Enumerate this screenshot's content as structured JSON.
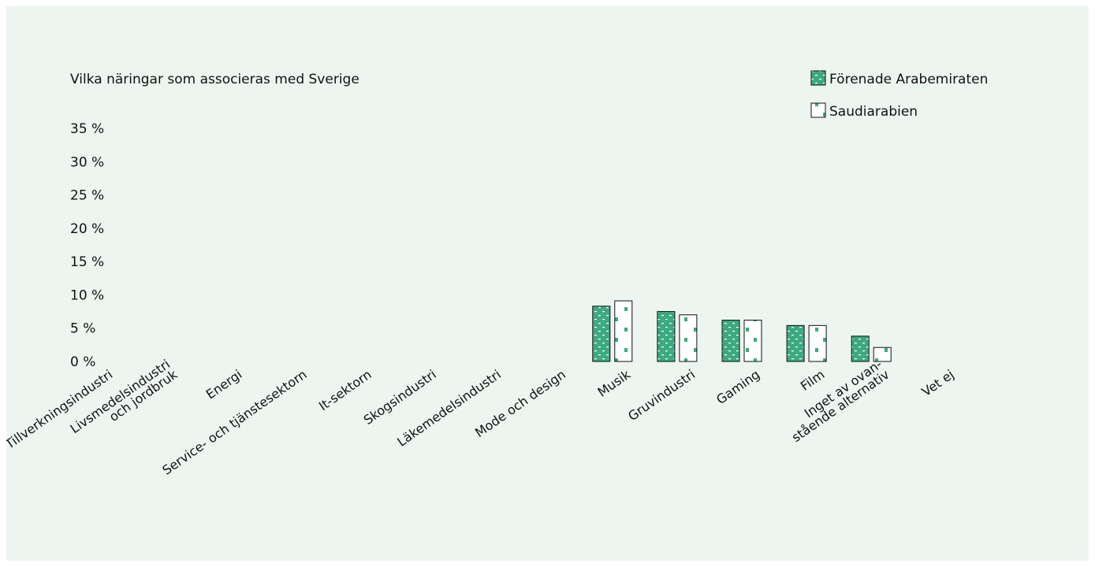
{
  "chart_data": {
    "type": "bar",
    "title": "Vilka näringar som associeras med Sverige",
    "categories": [
      "Tillverkningsindustri",
      "Livsmedelsindustri och jordbruk",
      "Energi",
      "Service- och tjänstesektorn",
      "It-sektorn",
      "Skogsindustri",
      "Läkemedelsindustri",
      "Mode och design",
      "Musik",
      "Gruvindustri",
      "Gaming",
      "Film",
      "Inget av ovan-stående alternativ",
      "Vet ej"
    ],
    "category_lines": [
      [
        "Tillverkningsindustri"
      ],
      [
        "Livsmedelsindustri",
        "och jordbruk"
      ],
      [
        "Energi"
      ],
      [
        "Service- och tjänstesektorn"
      ],
      [
        "It-sektorn"
      ],
      [
        "Skogsindustri"
      ],
      [
        "Läkemedelsindustri"
      ],
      [
        "Mode och design"
      ],
      [
        "Musik"
      ],
      [
        "Gruvindustri"
      ],
      [
        "Gaming"
      ],
      [
        "Film"
      ],
      [
        "Inget av ovan-",
        "stående alternativ"
      ],
      [
        "Vet ej"
      ]
    ],
    "series": [
      {
        "name": "Förenade Arabemiraten",
        "color": "#3daa80",
        "pattern": "dashes",
        "values": [
          null,
          null,
          null,
          null,
          null,
          null,
          null,
          null,
          8.3,
          7.5,
          6.2,
          5.4,
          3.8,
          null
        ]
      },
      {
        "name": "Saudiarabien",
        "color": "#ffffff",
        "pattern": "dots",
        "values": [
          null,
          null,
          null,
          null,
          null,
          null,
          null,
          null,
          9.1,
          7.0,
          6.2,
          5.4,
          2.1,
          null
        ]
      }
    ],
    "ylim": [
      0,
      35
    ],
    "yticks": [
      "0 %",
      "5 %",
      "10 %",
      "15 %",
      "20 %",
      "25 %",
      "30 %",
      "35 %"
    ],
    "legend_position": "top-right",
    "grid": false
  }
}
